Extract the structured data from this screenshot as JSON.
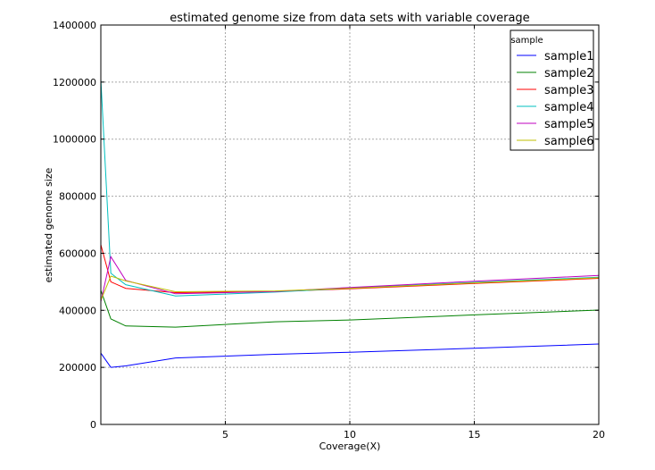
{
  "chart_data": {
    "type": "line",
    "title": "estimated genome size from data sets with variable coverage",
    "xlabel": "Coverage(X)",
    "ylabel": "estimated genome size",
    "xlim": [
      0,
      20
    ],
    "ylim": [
      0,
      1400000
    ],
    "xticks": [
      5,
      10,
      15,
      20
    ],
    "xtick_labels": [
      "5",
      "10",
      "15",
      "20"
    ],
    "yticks": [
      0,
      200000,
      400000,
      600000,
      800000,
      1000000,
      1200000,
      1400000
    ],
    "ytick_labels": [
      "0",
      "200000",
      "400000",
      "600000",
      "800000",
      "1000000",
      "1200000",
      "1400000"
    ],
    "grid": true,
    "legend": {
      "title": "sample",
      "placement": "top-right"
    },
    "series": [
      {
        "name": "sample1",
        "color": "#0000ff",
        "x": [
          0,
          0.4,
          1,
          3,
          7,
          10,
          15,
          20
        ],
        "y": [
          250000,
          200000,
          205000,
          233000,
          246000,
          253000,
          267000,
          282000
        ]
      },
      {
        "name": "sample2",
        "color": "#008000",
        "x": [
          0,
          0.4,
          1,
          3,
          7,
          10,
          15,
          20
        ],
        "y": [
          470000,
          370000,
          345000,
          341000,
          360000,
          366000,
          384000,
          401000
        ]
      },
      {
        "name": "sample3",
        "color": "#ff0000",
        "x": [
          0,
          0.4,
          1,
          3,
          7,
          10,
          15,
          20
        ],
        "y": [
          630000,
          500000,
          477000,
          462000,
          466000,
          475000,
          494000,
          512000
        ]
      },
      {
        "name": "sample4",
        "color": "#00bfbf",
        "x": [
          0,
          0.4,
          1,
          3,
          7,
          10,
          15,
          20
        ],
        "y": [
          1210000,
          530000,
          490000,
          450000,
          464000,
          478000,
          498000,
          516000
        ]
      },
      {
        "name": "sample5",
        "color": "#bf00bf",
        "x": [
          0,
          0.4,
          1,
          3,
          7,
          10,
          15,
          20
        ],
        "y": [
          430000,
          588000,
          505000,
          458000,
          466000,
          480000,
          502000,
          522000
        ]
      },
      {
        "name": "sample6",
        "color": "#bfbf00",
        "x": [
          0,
          0.4,
          1,
          3,
          7,
          10,
          15,
          20
        ],
        "y": [
          435000,
          520000,
          503000,
          465000,
          468000,
          477000,
          496000,
          514000
        ]
      }
    ]
  }
}
